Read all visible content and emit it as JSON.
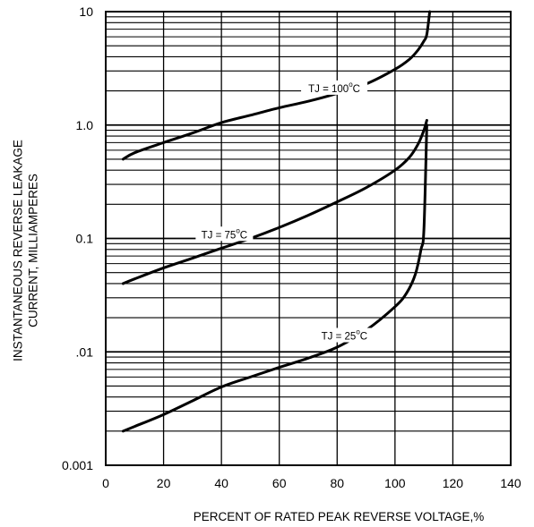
{
  "chart_data": {
    "type": "line",
    "title": "",
    "xlabel": "PERCENT OF RATED PEAK REVERSE VOLTAGE,%",
    "ylabel_lines": [
      "INSTANTANEOUS REVERSE LEAKAGE",
      "CURRENT, MILLIAMPERES"
    ],
    "x_scale": "linear",
    "y_scale": "log",
    "xlim": [
      0,
      140
    ],
    "ylim": [
      0.001,
      10
    ],
    "x_ticks": [
      0,
      20,
      40,
      60,
      80,
      100,
      120,
      140
    ],
    "x_tick_labels": [
      "0",
      "20",
      "40",
      "60",
      "80",
      "100",
      "120",
      "140"
    ],
    "y_ticks": [
      0.001,
      0.01,
      0.1,
      1,
      10
    ],
    "y_tick_labels": [
      "0.001",
      ".01",
      "0.1",
      "1.0",
      "10"
    ],
    "grid": true,
    "series": [
      {
        "name_prefix": "TJ = 100",
        "name_sup": "o",
        "name_suffix": "C",
        "color": "#000000",
        "x": [
          6,
          10,
          20,
          30,
          40,
          50,
          60,
          70,
          80,
          90,
          100,
          105,
          108,
          110,
          111,
          112
        ],
        "y": [
          0.5,
          0.57,
          0.7,
          0.85,
          1.05,
          1.22,
          1.42,
          1.62,
          1.9,
          2.3,
          3.1,
          3.8,
          4.6,
          5.5,
          6.3,
          10
        ]
      },
      {
        "name_prefix": "TJ = 75",
        "name_sup": "o",
        "name_suffix": "C",
        "color": "#000000",
        "x": [
          6,
          10,
          20,
          30,
          40,
          50,
          60,
          70,
          80,
          90,
          100,
          105,
          108,
          110,
          111
        ],
        "y": [
          0.04,
          0.044,
          0.055,
          0.067,
          0.082,
          0.1,
          0.125,
          0.16,
          0.21,
          0.28,
          0.4,
          0.52,
          0.68,
          0.9,
          1.1
        ]
      },
      {
        "name_prefix": "TJ = 25",
        "name_sup": "o",
        "name_suffix": "C",
        "color": "#000000",
        "x": [
          6,
          10,
          20,
          30,
          40,
          50,
          60,
          70,
          80,
          90,
          100,
          104,
          107,
          109,
          110,
          111
        ],
        "y": [
          0.002,
          0.0022,
          0.0028,
          0.0037,
          0.0049,
          0.006,
          0.0073,
          0.0088,
          0.011,
          0.0155,
          0.025,
          0.033,
          0.048,
          0.08,
          0.12,
          1.0
        ]
      }
    ]
  }
}
